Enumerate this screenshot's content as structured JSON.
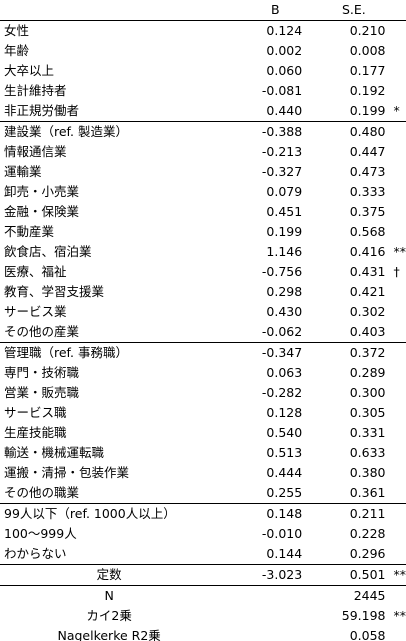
{
  "header": {
    "b": "B",
    "se": "S.E."
  },
  "groups": [
    {
      "rows": [
        {
          "label": "女性",
          "b": "0.124",
          "se": "0.210"
        },
        {
          "label": "年齢",
          "b": "0.002",
          "se": "0.008"
        },
        {
          "label": "大卒以上",
          "b": "0.060",
          "se": "0.177"
        },
        {
          "label": "生計維持者",
          "b": "-0.081",
          "se": "0.192"
        },
        {
          "label": "非正規労働者",
          "b": "0.440",
          "se": "0.199",
          "sig": "*"
        }
      ]
    },
    {
      "rows": [
        {
          "label": "建設業（ref. 製造業）",
          "b": "-0.388",
          "se": "0.480"
        },
        {
          "label": "情報通信業",
          "b": "-0.213",
          "se": "0.447"
        },
        {
          "label": "運輸業",
          "b": "-0.327",
          "se": "0.473"
        },
        {
          "label": "卸売・小売業",
          "b": "0.079",
          "se": "0.333"
        },
        {
          "label": "金融・保険業",
          "b": "0.451",
          "se": "0.375"
        },
        {
          "label": "不動産業",
          "b": "0.199",
          "se": "0.568"
        },
        {
          "label": "飲食店、宿泊業",
          "b": "1.146",
          "se": "0.416",
          "sig": "**"
        },
        {
          "label": "医療、福祉",
          "b": "-0.756",
          "se": "0.431",
          "sig": "†"
        },
        {
          "label": "教育、学習支援業",
          "b": "0.298",
          "se": "0.421"
        },
        {
          "label": "サービス業",
          "b": "0.430",
          "se": "0.302"
        },
        {
          "label": "その他の産業",
          "b": "-0.062",
          "se": "0.403"
        }
      ]
    },
    {
      "rows": [
        {
          "label": "管理職（ref. 事務職）",
          "b": "-0.347",
          "se": "0.372"
        },
        {
          "label": "専門・技術職",
          "b": "0.063",
          "se": "0.289"
        },
        {
          "label": "営業・販売職",
          "b": "-0.282",
          "se": "0.300"
        },
        {
          "label": "サービス職",
          "b": "0.128",
          "se": "0.305"
        },
        {
          "label": "生産技能職",
          "b": "0.540",
          "se": "0.331"
        },
        {
          "label": "輸送・機械運転職",
          "b": "0.513",
          "se": "0.633"
        },
        {
          "label": "運搬・清掃・包装作業",
          "b": "0.444",
          "se": "0.380"
        },
        {
          "label": "その他の職業",
          "b": "0.255",
          "se": "0.361"
        }
      ]
    },
    {
      "rows": [
        {
          "label": "99人以下（ref. 1000人以上）",
          "b": "0.148",
          "se": "0.211"
        },
        {
          "label": "100～999人",
          "b": "-0.010",
          "se": "0.228"
        },
        {
          "label": "わからない",
          "b": "0.144",
          "se": "0.296"
        }
      ]
    }
  ],
  "footer": [
    {
      "label": "定数",
      "b": "-3.023",
      "se": "0.501",
      "sig": "**"
    },
    {
      "label": "N",
      "se": "2445"
    },
    {
      "label": "カイ2乗",
      "se": "59.198",
      "sig": "**"
    },
    {
      "label": "Nagelkerke R2乗",
      "se": "0.058"
    }
  ]
}
